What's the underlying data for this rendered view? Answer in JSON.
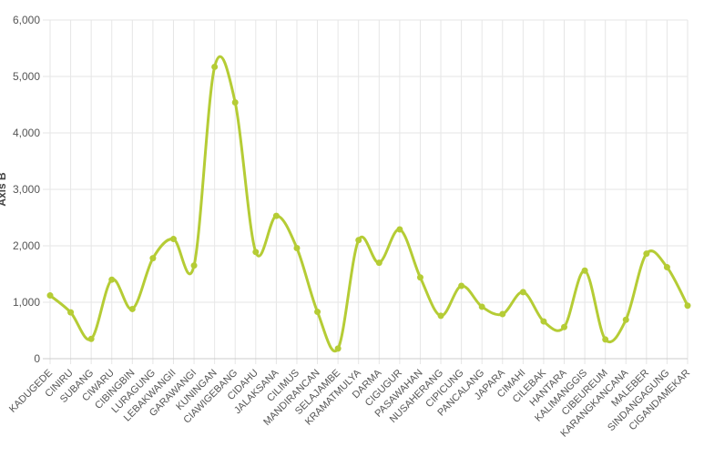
{
  "chart_data": {
    "type": "line",
    "title": "",
    "xlabel": "",
    "ylabel": "Axis B",
    "ylim": [
      0,
      6000
    ],
    "yticks": [
      0,
      1000,
      2000,
      3000,
      4000,
      5000,
      6000
    ],
    "ytick_labels": [
      "0",
      "1,000",
      "2,000",
      "3,000",
      "4,000",
      "5,000",
      "6,000"
    ],
    "grid": true,
    "legend": "none",
    "color": "#b5cc35",
    "smooth": true,
    "categories": [
      "KADUGEDE",
      "CINIRU",
      "SUBANG",
      "CIWARU",
      "CIBINGBIN",
      "LURAGUNG",
      "LEBAKWANGII",
      "GARAWANGI",
      "KUNINGAN",
      "CIAWIGEBANG",
      "CIDAHU",
      "JALAKSANA",
      "CILIMUS",
      "MANDIRANCAN",
      "SELAJAMBE",
      "KRAMATMULYA",
      "DARMA",
      "CIGUGUR",
      "PASAWAHAN",
      "NUSAHERANG",
      "CIPICUNG",
      "PANCALANG",
      "JAPARA",
      "CIMAHI",
      "CILEBAK",
      "HANTARA",
      "KALIMANGGIS",
      "CIBEUREUM",
      "KARANGKANCANA",
      "MALEBER",
      "SINDANGAGUNG",
      "CIGANDAMEKAR"
    ],
    "series": [
      {
        "values": [
          1120,
          820,
          350,
          1400,
          880,
          1780,
          2120,
          1650,
          5170,
          4540,
          1890,
          2530,
          1960,
          830,
          180,
          2100,
          1700,
          2290,
          1440,
          760,
          1290,
          920,
          790,
          1180,
          660,
          560,
          1560,
          340,
          690,
          1860,
          1620,
          940
        ]
      }
    ]
  }
}
